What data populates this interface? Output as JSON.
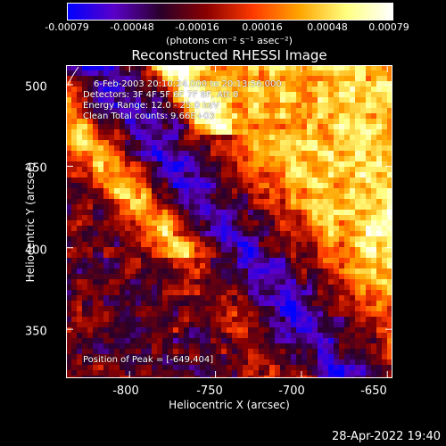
{
  "colorbar": {
    "ticks": [
      "-0.00079",
      "-0.00048",
      "-0.00016",
      "0.00016",
      "0.00048",
      "0.00079"
    ],
    "units": "(photons cm⁻² s⁻¹ asec⁻²)"
  },
  "chart_data": {
    "type": "heatmap",
    "title": "Reconstructed RHESSI Image",
    "xlabel": "Heliocentric X (arcsec)",
    "ylabel": "Heliocentric Y (arcsec)",
    "xlim": [
      -837,
      -647
    ],
    "ylim": [
      320,
      512
    ],
    "xticks": [
      "-800",
      "-750",
      "-700",
      "-650"
    ],
    "yticks": [
      "500",
      "450",
      "400",
      "350"
    ],
    "colorscale": [
      "#0000ff",
      "#5a00c8",
      "#2a002a",
      "#8b0000",
      "#ff3a00",
      "#ffa500",
      "#ffff80",
      "#ffffff"
    ],
    "value_range": [
      -0.00079,
      0.00079
    ],
    "peak": [
      -649,
      404
    ],
    "info_lines": [
      "6-Feb-2003 20:10:24.000 to 20:13:56.000",
      "Detectors: 3F 4F 5F 6F 7F 8F, Att 0",
      "Energy Range: 12.0 - 25.0 keV",
      "Clean    Total counts: 9.66E+03"
    ],
    "peak_label": "Position of Peak = [-649,404]"
  },
  "footer": {
    "timestamp": "28-Apr-2022 19:40"
  }
}
